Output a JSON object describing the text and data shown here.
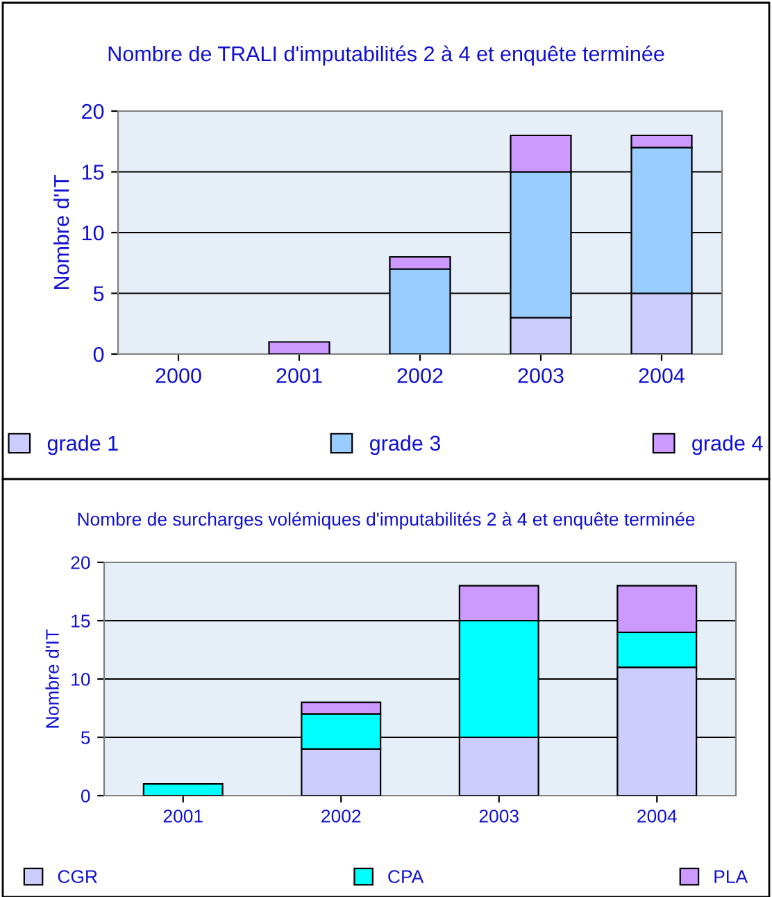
{
  "chart_data": [
    {
      "type": "bar",
      "stacked": true,
      "title": "Nombre de TRALI d'imputabilités 2 à 4 et enquête terminée",
      "ylabel": "Nombre d'IT",
      "categories": [
        "2000",
        "2001",
        "2002",
        "2003",
        "2004"
      ],
      "ylim": [
        0,
        20
      ],
      "yticks": [
        0,
        5,
        10,
        15,
        20
      ],
      "grid": "y",
      "legend": "bottom",
      "series": [
        {
          "name": "grade 1",
          "color": "#ccccff",
          "values": [
            0,
            0,
            0,
            3,
            5
          ]
        },
        {
          "name": "grade 3",
          "color": "#99ccff",
          "values": [
            0,
            0,
            7,
            12,
            12
          ]
        },
        {
          "name": "grade 4",
          "color": "#cc99ff",
          "values": [
            0,
            1,
            1,
            3,
            1
          ]
        }
      ]
    },
    {
      "type": "bar",
      "stacked": true,
      "title": "Nombre de surcharges volémiques d'imputabilités 2 à 4 et enquête terminée",
      "ylabel": "Nombre d'IT",
      "categories": [
        "2001",
        "2002",
        "2003",
        "2004"
      ],
      "ylim": [
        0,
        20
      ],
      "yticks": [
        0,
        5,
        10,
        15,
        20
      ],
      "grid": "y",
      "legend": "bottom",
      "series": [
        {
          "name": "CGR",
          "color": "#ccccff",
          "values": [
            0,
            4,
            5,
            11
          ]
        },
        {
          "name": "CPA",
          "color": "#00ffff",
          "values": [
            1,
            3,
            10,
            3
          ]
        },
        {
          "name": "PLA",
          "color": "#cc99ff",
          "values": [
            0,
            1,
            3,
            4
          ]
        }
      ]
    }
  ]
}
